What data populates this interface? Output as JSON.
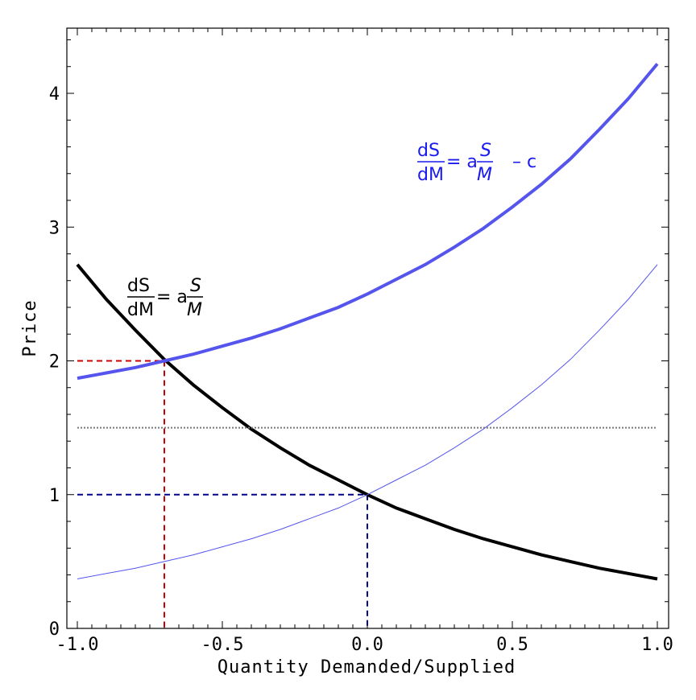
{
  "chart_data": {
    "type": "line",
    "title": "",
    "xlabel": "Quantity Demanded/Supplied",
    "ylabel": "Price",
    "xlim": [
      -1.0,
      1.0
    ],
    "ylim": [
      0,
      4.5
    ],
    "grid": false,
    "x_ticks": [
      -1.0,
      -0.5,
      0.0,
      0.5,
      1.0
    ],
    "x_tick_labels": [
      "-1.0",
      "-0.5",
      "0.0",
      "0.5",
      "1.0"
    ],
    "y_ticks": [
      0,
      1,
      2,
      3,
      4
    ],
    "y_tick_labels": [
      "0",
      "1",
      "2",
      "3",
      "4"
    ],
    "series": [
      {
        "color": "#000000",
        "style": "thick",
        "x": [
          -1.0,
          -0.9,
          -0.8,
          -0.7,
          -0.6,
          -0.5,
          -0.4,
          -0.3,
          -0.2,
          -0.1,
          0.0,
          0.1,
          0.2,
          0.3,
          0.4,
          0.5,
          0.6,
          0.7,
          0.8,
          0.9,
          1.0
        ],
        "y": [
          2.72,
          2.46,
          2.23,
          2.01,
          1.82,
          1.65,
          1.49,
          1.35,
          1.22,
          1.11,
          1.0,
          0.9,
          0.82,
          0.74,
          0.67,
          0.61,
          0.55,
          0.5,
          0.45,
          0.41,
          0.37
        ]
      },
      {
        "color": "#5555ee",
        "style": "thick",
        "x": [
          -1.0,
          -0.9,
          -0.8,
          -0.7,
          -0.6,
          -0.5,
          -0.4,
          -0.3,
          -0.2,
          -0.1,
          0.0,
          0.1,
          0.2,
          0.3,
          0.4,
          0.5,
          0.6,
          0.7,
          0.8,
          0.9,
          1.0
        ],
        "y": [
          1.87,
          1.91,
          1.95,
          2.0,
          2.05,
          2.11,
          2.17,
          2.24,
          2.32,
          2.4,
          2.5,
          2.61,
          2.72,
          2.85,
          2.99,
          3.15,
          3.32,
          3.51,
          3.73,
          3.96,
          4.22
        ]
      },
      {
        "color": "#5555ee",
        "style": "thin",
        "x": [
          -1.0,
          -0.9,
          -0.8,
          -0.7,
          -0.6,
          -0.5,
          -0.4,
          -0.3,
          -0.2,
          -0.1,
          0.0,
          0.1,
          0.2,
          0.3,
          0.4,
          0.5,
          0.6,
          0.7,
          0.8,
          0.9,
          1.0
        ],
        "y": [
          0.37,
          0.41,
          0.45,
          0.5,
          0.55,
          0.61,
          0.67,
          0.74,
          0.82,
          0.9,
          1.0,
          1.11,
          1.22,
          1.35,
          1.49,
          1.65,
          1.82,
          2.01,
          2.23,
          2.46,
          2.72
        ]
      },
      {
        "color": "#777777",
        "style": "dotted",
        "x": [
          -1.0,
          1.0
        ],
        "y": [
          1.5,
          1.5
        ]
      }
    ],
    "reference_lines": [
      {
        "color": "#cc0000",
        "x": -0.7,
        "y": 2.0
      },
      {
        "color": "#00008b",
        "x": 0.0,
        "y": 1.0
      }
    ],
    "annotations": [
      {
        "color": "#000000",
        "num": "dS",
        "den": "dM",
        "eq": "= a",
        "frac_num": "S",
        "frac_den": "M",
        "tail": ""
      },
      {
        "color": "#1a1aee",
        "num": "dS",
        "den": "dM",
        "eq": "= a",
        "frac_num": "S",
        "frac_den": "M",
        "tail": "–  c"
      }
    ]
  }
}
